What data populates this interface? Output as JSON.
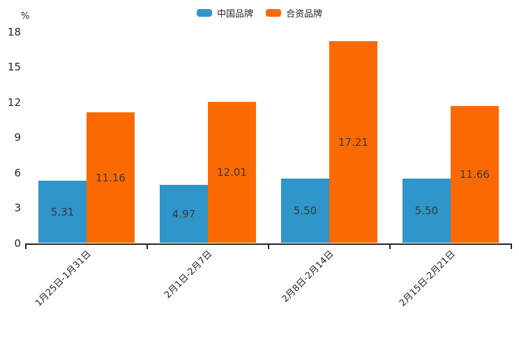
{
  "chart_data": {
    "type": "bar",
    "ylabel": "%",
    "categories": [
      "1月25日-1月31日",
      "2月1日-2月7日",
      "2月8日-2月14日",
      "2月15日-2月21日"
    ],
    "series": [
      {
        "name": "中国品牌",
        "color": "#3095c9",
        "values": [
          5.31,
          4.97,
          5.5,
          5.5
        ],
        "labels": [
          "5.31",
          "4.97",
          "5.50",
          "5.50"
        ]
      },
      {
        "name": "合资品牌",
        "color": "#fb6a02",
        "values": [
          11.16,
          12.01,
          17.21,
          11.66
        ],
        "labels": [
          "11.16",
          "12.01",
          "17.21",
          "11.66"
        ]
      }
    ],
    "ylim": [
      0,
      18
    ],
    "yticks": [
      0,
      3,
      6,
      9,
      12,
      15,
      18
    ],
    "legend_position": "top",
    "grid": false,
    "value_labels": true,
    "colors": {
      "axis": "#262626",
      "value_label": "#3a3a3a",
      "background": "#ffffff"
    }
  }
}
